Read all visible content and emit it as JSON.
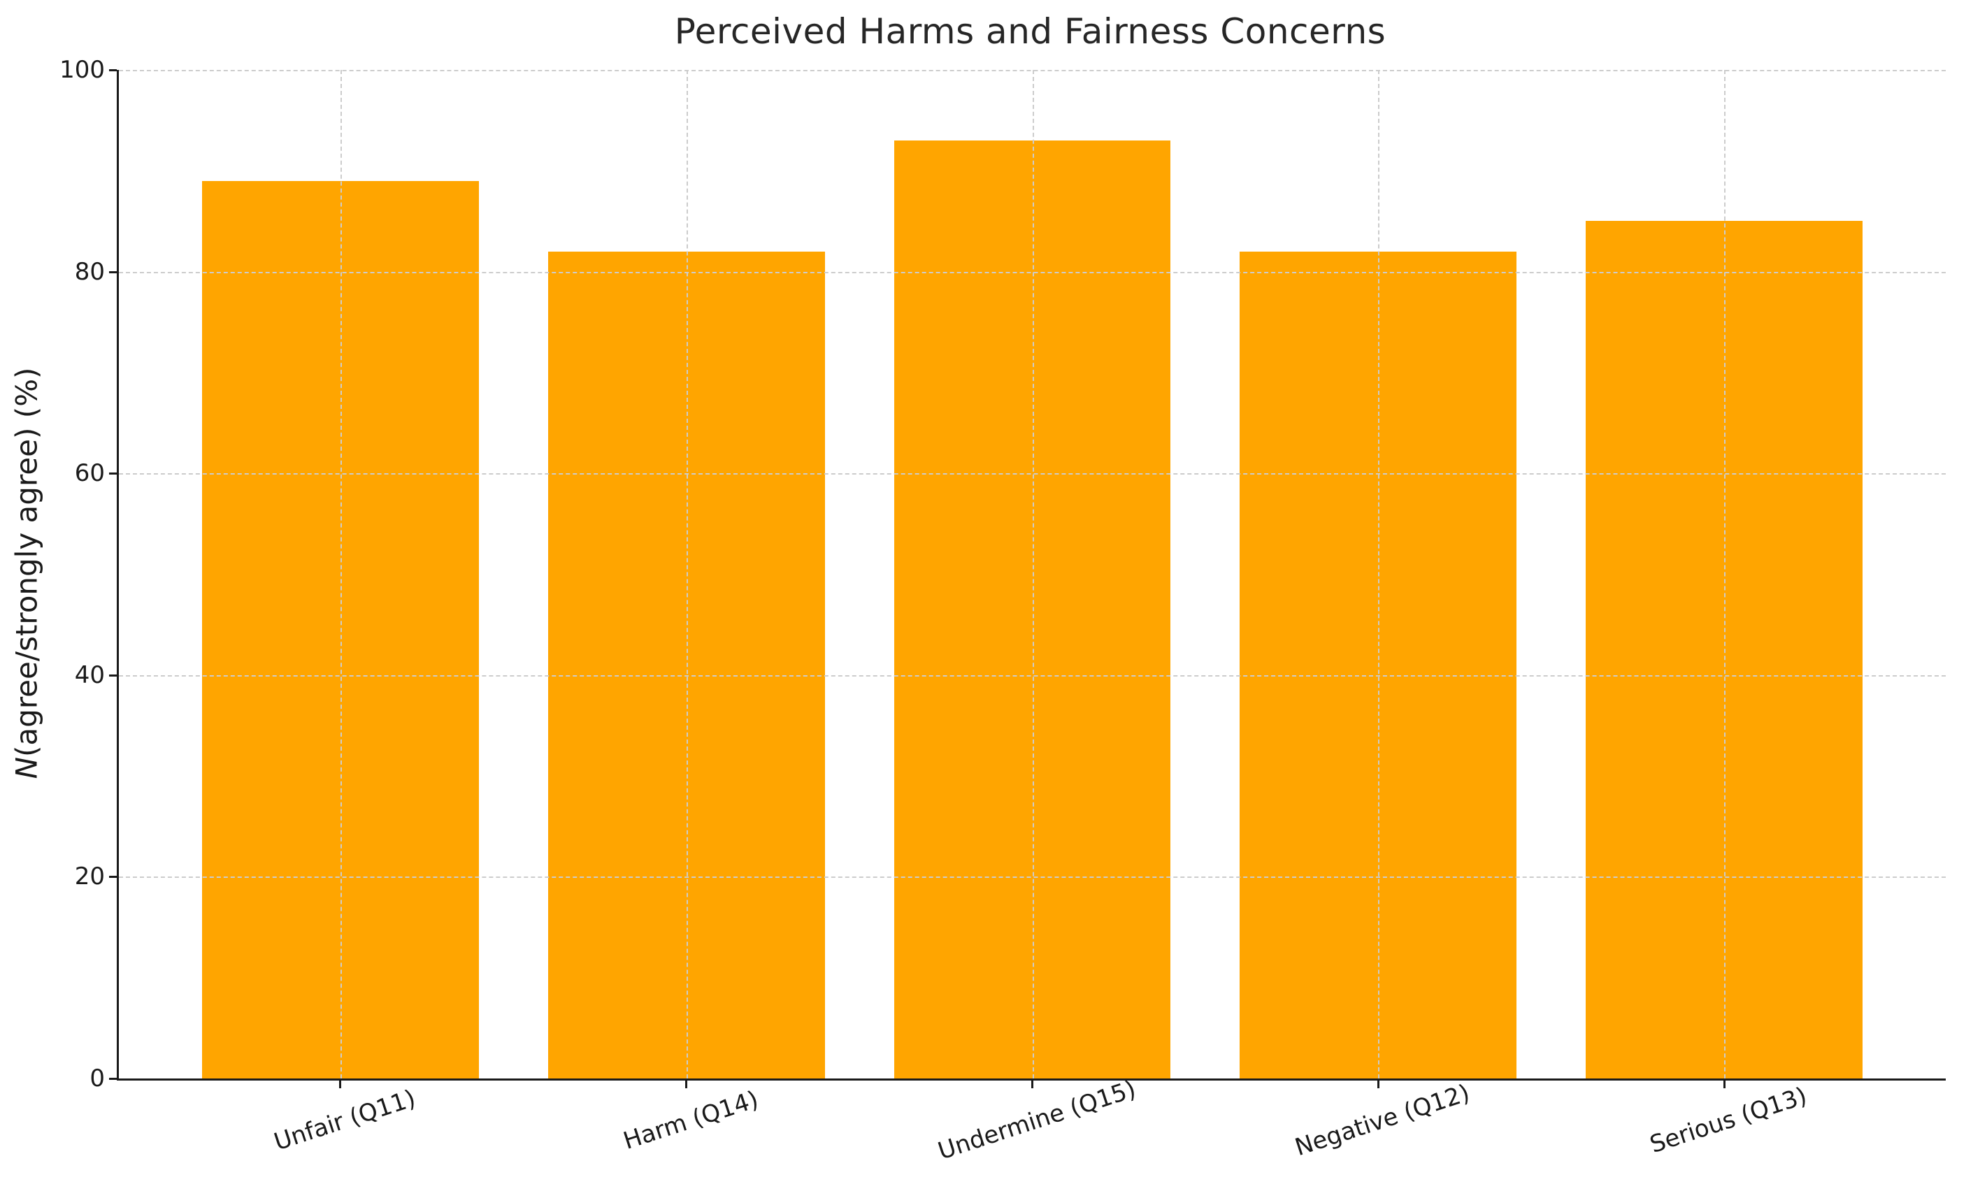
{
  "figure": {
    "background": "#ffffff"
  },
  "chart_data": {
    "type": "bar",
    "title": "Perceived Harms and Fairness Concerns",
    "categories": [
      "Unfair (Q11)",
      "Harm (Q14)",
      "Undermine (Q15)",
      "Negative (Q12)",
      "Serious (Q13)"
    ],
    "values": [
      89,
      82,
      93,
      82,
      85
    ],
    "xlabel": "",
    "ylabel": "N(agree/strongly agree) (%)",
    "ylabel_italic_part": "N",
    "ylabel_rest_part": "(agree/strongly agree) (%)",
    "ylim": [
      0,
      100
    ],
    "yticks": [
      0,
      20,
      40,
      60,
      80,
      100
    ],
    "x_tick_label_rotation_deg": 18,
    "bar_color": "#FFA500",
    "bar_width_fraction": 0.8,
    "grid": {
      "visible": true,
      "axis": "both",
      "style": "dashed",
      "color": "#cccccc"
    },
    "legend": "none",
    "colors": {
      "bar": "#FFA500",
      "grid": "#cccccc",
      "axis": "#1a1a1a",
      "tick_text": "#1a1a1a",
      "title_text": "#262626",
      "background": "#ffffff"
    }
  }
}
